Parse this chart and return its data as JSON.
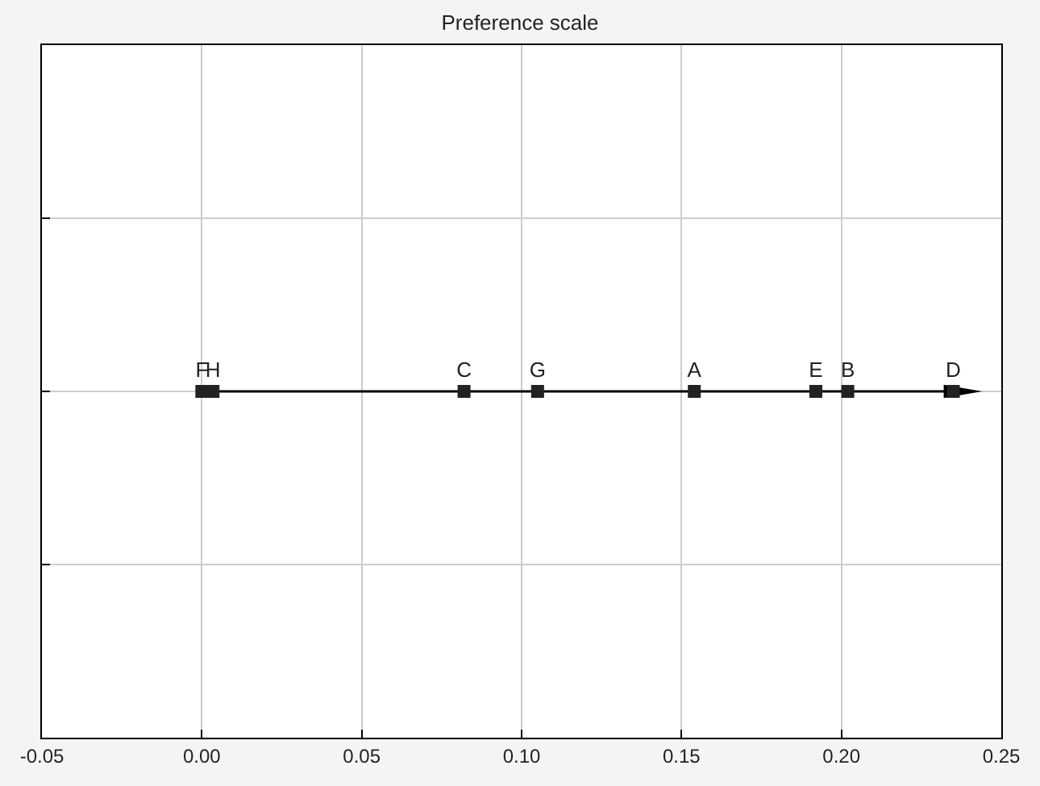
{
  "chart_data": {
    "type": "scatter",
    "title": "Preference scale",
    "orientation": "horizontal",
    "categories": [
      null,
      null,
      null
    ],
    "series": [
      {
        "name": "F",
        "color": "#222222",
        "values": [
          null,
          0.0,
          null
        ]
      },
      {
        "name": "H",
        "color": "#222222",
        "values": [
          null,
          0.0035,
          null
        ]
      },
      {
        "name": "C",
        "color": "#222222",
        "values": [
          null,
          0.082,
          null
        ]
      },
      {
        "name": "G",
        "color": "#222222",
        "values": [
          null,
          0.105,
          null
        ]
      },
      {
        "name": "A",
        "color": "#222222",
        "values": [
          null,
          0.154,
          null
        ]
      },
      {
        "name": "E",
        "color": "#222222",
        "values": [
          null,
          0.192,
          null
        ]
      },
      {
        "name": "B",
        "color": "#222222",
        "values": [
          null,
          0.202,
          null
        ]
      },
      {
        "name": "D",
        "color": "#222222",
        "values": [
          null,
          0.235,
          null
        ]
      }
    ],
    "marker": "square",
    "xlim": [
      -0.05,
      0.25
    ],
    "xticks": [
      {
        "value": -0.05,
        "label": "-0.05"
      },
      {
        "value": 0,
        "label": "0.00"
      },
      {
        "value": 0.05,
        "label": "0.05"
      },
      {
        "value": 0.1,
        "label": "0.10"
      },
      {
        "value": 0.15,
        "label": "0.15"
      },
      {
        "value": 0.2,
        "label": "0.20"
      },
      {
        "value": 0.25,
        "label": "0.25"
      }
    ],
    "grid": true,
    "legend": false
  }
}
